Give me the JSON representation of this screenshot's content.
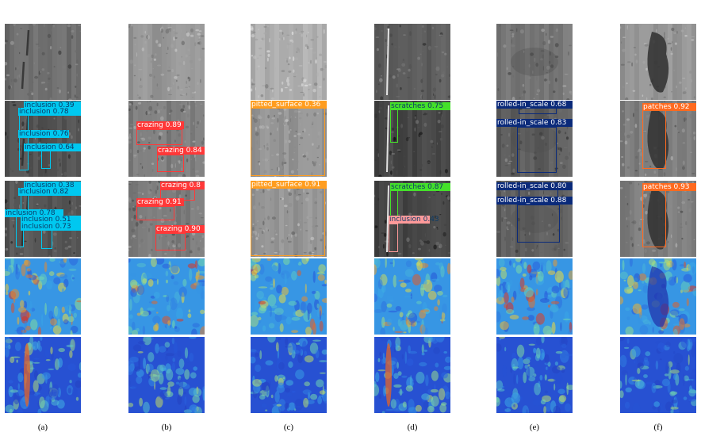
{
  "captions": [
    "(a)",
    "(b)",
    "(c)",
    "(d)",
    "(e)",
    "(f)"
  ],
  "colors": {
    "inclusion": "#00c8f0",
    "crazing": "#ff3838",
    "pitted_surface": "#ff9d1f",
    "scratches": "#45e02a",
    "rolled_in_scale": "#0a2a7a",
    "patches": "#ff6a1f",
    "inclusion_pink": "#ff9a9a"
  },
  "columns": [
    {
      "id": "a",
      "row2": [
        {
          "label": "inclusion 0.39",
          "cls": "inclusion"
        },
        {
          "label": "inclusion 0.78",
          "cls": "inclusion"
        },
        {
          "label": "inclusion 0.76",
          "cls": "inclusion"
        },
        {
          "label": "inclusion 0.64",
          "cls": "inclusion"
        }
      ],
      "row3": [
        {
          "label": "inclusion 0.38",
          "cls": "inclusion"
        },
        {
          "label": "inclusion 0.82",
          "cls": "inclusion"
        },
        {
          "label": "inclusion 0.78",
          "cls": "inclusion"
        },
        {
          "label": "inclusion 0.51",
          "cls": "inclusion"
        },
        {
          "label": "inclusion 0.73",
          "cls": "inclusion"
        }
      ]
    },
    {
      "id": "b",
      "row2": [
        {
          "label": "crazing 0.89",
          "cls": "crazing"
        },
        {
          "label": "crazing 0.84",
          "cls": "crazing"
        }
      ],
      "row3": [
        {
          "label": "crazing 0.8",
          "cls": "crazing"
        },
        {
          "label": "crazing 0.91",
          "cls": "crazing"
        },
        {
          "label": "crazing 0.90",
          "cls": "crazing"
        }
      ]
    },
    {
      "id": "c",
      "row2": [
        {
          "label": "pitted_surface 0.36",
          "cls": "pitted_surface"
        }
      ],
      "row3": [
        {
          "label": "pitted_surface 0.91",
          "cls": "pitted_surface"
        }
      ]
    },
    {
      "id": "d",
      "row2": [
        {
          "label": "scratches 0.75",
          "cls": "scratches"
        }
      ],
      "row3": [
        {
          "label": "scratches 0.87",
          "cls": "scratches"
        },
        {
          "label": "inclusion 0.43",
          "cls": "inclusion_pink"
        }
      ]
    },
    {
      "id": "e",
      "row2": [
        {
          "label": "rolled-in_scale 0.68",
          "cls": "rolled_in_scale"
        },
        {
          "label": "rolled-in_scale 0.83",
          "cls": "rolled_in_scale"
        }
      ],
      "row3": [
        {
          "label": "rolled-in_scale 0.80",
          "cls": "rolled_in_scale"
        },
        {
          "label": "rolled-in_scale 0.88",
          "cls": "rolled_in_scale"
        }
      ]
    },
    {
      "id": "f",
      "row2": [
        {
          "label": "patches 0.92",
          "cls": "patches"
        }
      ],
      "row3": [
        {
          "label": "patches 0.93",
          "cls": "patches"
        }
      ]
    }
  ]
}
